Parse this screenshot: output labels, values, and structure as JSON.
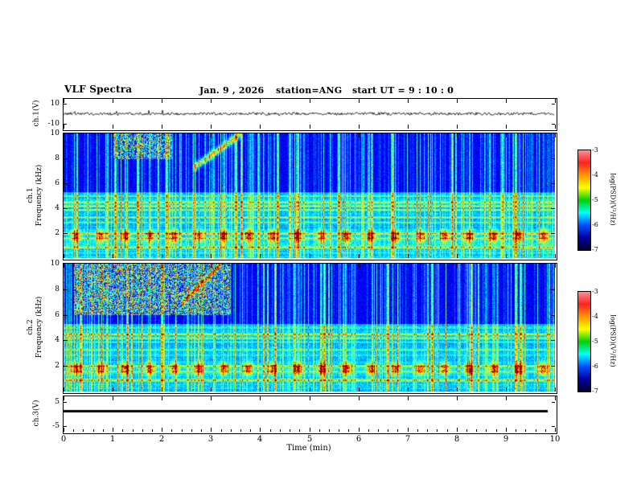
{
  "header": {
    "title": "VLF Spectra",
    "date": "Jan. 9 , 2026",
    "station": "station=ANG",
    "start_ut": "start UT =  9 : 10 : 0"
  },
  "x_axis": {
    "label": "Time (min)",
    "min": 0,
    "max": 10,
    "tick_labels": [
      "0",
      "1",
      "2",
      "3",
      "4",
      "5",
      "6",
      "7",
      "8",
      "9",
      "10"
    ]
  },
  "panels": {
    "ch1_wave": {
      "ylabel": "ch.1(V)",
      "yticks": [
        "10",
        "-10"
      ],
      "ytick_values": [
        10,
        -10
      ],
      "yrange": [
        -15,
        15
      ]
    },
    "ch1_spec": {
      "ylabel_line1": "ch.1",
      "ylabel_line2": "Frequency (kHz)",
      "yticks": [
        "10",
        "8",
        "6",
        "4",
        "2"
      ],
      "ytick_values": [
        10,
        8,
        6,
        4,
        2
      ],
      "yrange": [
        0,
        10
      ]
    },
    "ch2_spec": {
      "ylabel_line1": "ch.2",
      "ylabel_line2": "Frequency (kHz)",
      "yticks": [
        "10",
        "8",
        "6",
        "4",
        "2"
      ],
      "ytick_values": [
        10,
        8,
        6,
        4,
        2
      ],
      "yrange": [
        0,
        10
      ]
    },
    "ch3_wave": {
      "ylabel": "ch.3(V)",
      "yticks": [
        "5",
        "-5"
      ],
      "ytick_values": [
        5,
        -5
      ],
      "yrange": [
        -7.5,
        7.5
      ]
    }
  },
  "colorbar": {
    "label": "log(PSD)(V²/Hz)",
    "tick_labels": [
      "-3",
      "-4",
      "-5",
      "-6",
      "-7"
    ],
    "zmin": -7,
    "zmax": -3,
    "stops": [
      "#ff9090",
      "#ff2020",
      "#ff9800",
      "#ffff00",
      "#00d000",
      "#00ffff",
      "#0050ff",
      "#0000a0",
      "#000030"
    ]
  },
  "chart_data": [
    {
      "type": "line",
      "name": "ch.1 voltage waveform",
      "xlim": [
        0,
        10
      ],
      "x_unit": "min",
      "ylim": [
        -15,
        15
      ],
      "ytick_values": [
        10,
        -10
      ],
      "y_unit": "V",
      "description": "continuous broadband noise, mean 0 V, peak-to-peak about 2 V with occasional small spikes"
    },
    {
      "type": "heatmap",
      "name": "ch.1 spectrogram",
      "xlim": [
        0,
        10
      ],
      "x_unit": "min",
      "ylim": [
        0,
        10
      ],
      "y_unit": "kHz",
      "zlabel": "log(PSD)(V²/Hz)",
      "zlim": [
        -7,
        -3
      ],
      "features": {
        "sferic_streak_density": 0.55,
        "strong_streak_times_min": [
          1.05,
          1.5,
          2.1,
          3.5,
          3.62,
          4.35,
          5.6,
          6.7,
          7.9,
          9.2
        ],
        "enhanced_band_khz": [
          0,
          5.3
        ],
        "horizontal_lines_khz": [
          0.9,
          1.6,
          2.0,
          2.9,
          3.3,
          3.9,
          4.2,
          4.5,
          5.0
        ],
        "horizontal_line_amps": [
          0.35,
          0.2,
          0.28,
          0.15,
          0.2,
          0.25,
          0.3,
          0.33,
          0.15
        ],
        "periodic_blobs": {
          "center_khz": 1.8,
          "period_min": 0.5,
          "first_min": 0.25,
          "amp": 0.45
        },
        "rising_tone": {
          "t_start_min": 2.65,
          "t_end_min": 3.6,
          "f_start_khz": 7.3,
          "f_end_khz": 10
        },
        "top_activity": {
          "t_range_min": [
            1.0,
            2.2
          ],
          "f_range_khz": [
            8,
            10
          ],
          "amp": 0.35
        }
      }
    },
    {
      "type": "heatmap",
      "name": "ch.2 spectrogram",
      "xlim": [
        0,
        10
      ],
      "x_unit": "min",
      "ylim": [
        0,
        10
      ],
      "y_unit": "kHz",
      "zlabel": "log(PSD)(V²/Hz)",
      "zlim": [
        -7,
        -3
      ],
      "features": {
        "sferic_streak_density": 0.5,
        "strong_streak_times_min": [
          0.35,
          1.3,
          2.0,
          4.3,
          5.3,
          6.6,
          7.5,
          8.3,
          9.3
        ],
        "enhanced_band_khz": [
          0,
          5.3
        ],
        "horizontal_lines_khz": [
          0.9,
          1.6,
          2.0,
          2.9,
          3.3,
          3.9,
          4.2,
          4.5,
          5.0
        ],
        "horizontal_line_amps": [
          0.35,
          0.2,
          0.3,
          0.12,
          0.15,
          0.15,
          0.2,
          0.33,
          0.12
        ],
        "periodic_blobs": {
          "center_khz": 1.8,
          "period_min": 0.5,
          "first_min": 0.25,
          "amp": 0.45
        },
        "rising_tone": {
          "t_start_min": 2.4,
          "t_end_min": 3.2,
          "f_start_khz": 7.0,
          "f_end_khz": 10
        },
        "top_activity": {
          "t_range_min": [
            0.2,
            3.4
          ],
          "f_range_khz": [
            6,
            10
          ],
          "amp": 0.42
        }
      }
    },
    {
      "type": "line",
      "name": "ch.3 voltage waveform",
      "xlim": [
        0,
        10
      ],
      "x_unit": "min",
      "ylim": [
        -7.5,
        7.5
      ],
      "ytick_values": [
        5,
        -5
      ],
      "y_unit": "V",
      "value": 1.5,
      "description": "flat constant level of about 1.5 V across the full record"
    }
  ]
}
